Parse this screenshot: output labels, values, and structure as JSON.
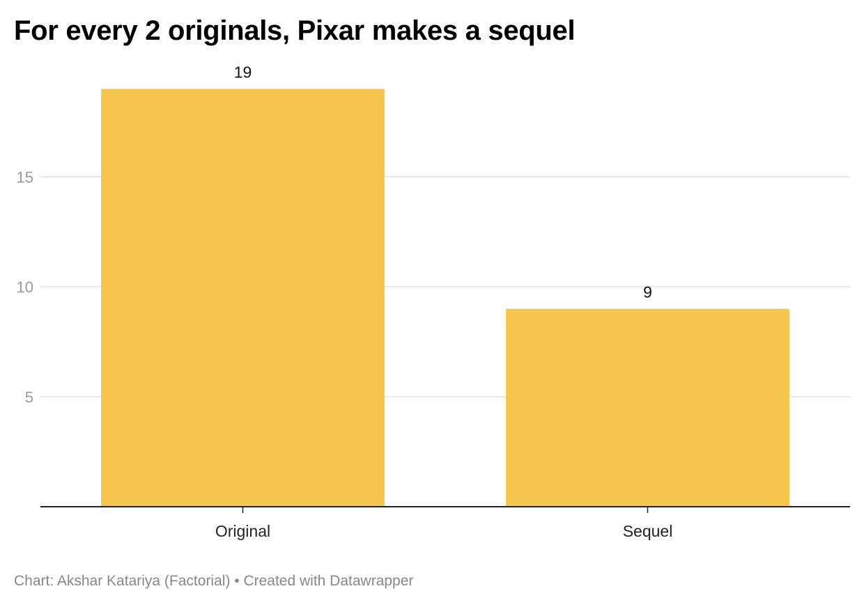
{
  "chart_data": {
    "type": "bar",
    "title": "For every 2 originals, Pixar makes a sequel",
    "categories": [
      "Original",
      "Sequel"
    ],
    "values": [
      19,
      9
    ],
    "value_labels": [
      "19",
      "9"
    ],
    "yticks": [
      5,
      10,
      15
    ],
    "ytick_labels": [
      "5",
      "10",
      "15"
    ],
    "ylim": [
      0,
      20
    ],
    "xlabel": "",
    "ylabel": "",
    "grid": true,
    "legend": "none",
    "bar_color": "#f6c54b",
    "grid_color": "#e3e3e3",
    "axis_color": "#222222"
  },
  "footer": {
    "credit": "Chart: Akshar Katariya (Factorial) • Created with Datawrapper"
  }
}
